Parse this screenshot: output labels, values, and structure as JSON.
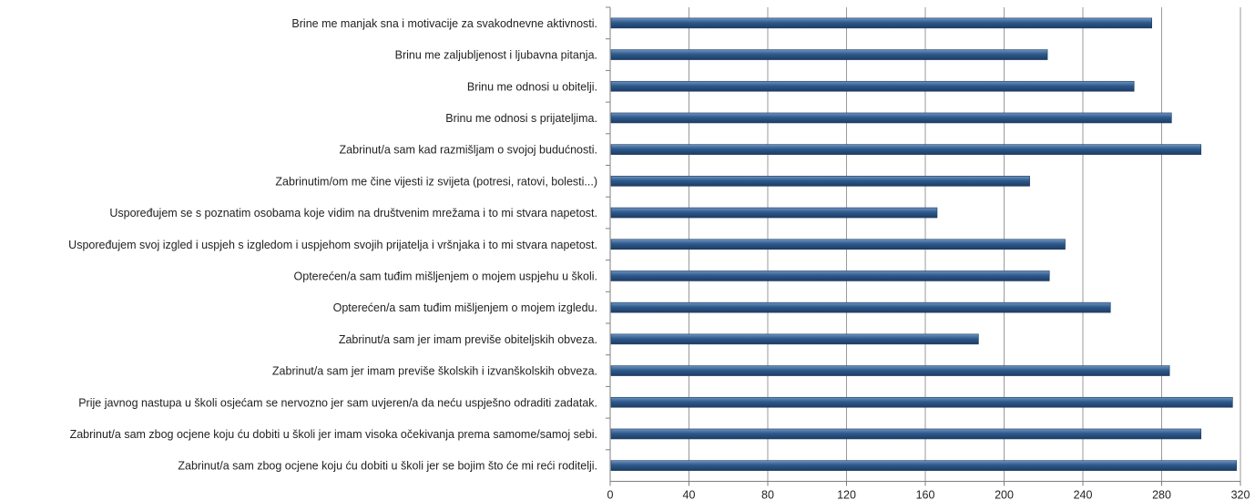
{
  "chart_data": {
    "type": "bar",
    "orientation": "horizontal",
    "title": "",
    "xlabel": "",
    "ylabel": "",
    "xlim": [
      0,
      320
    ],
    "x_ticks": [
      0,
      40,
      80,
      120,
      160,
      200,
      240,
      280,
      320
    ],
    "grid": "vertical",
    "legend": "none",
    "bar_color": "#2e5a8c",
    "categories": [
      "Brine me manjak sna i motivacije za svakodnevne aktivnosti.",
      "Brinu me zaljubljenost i ljubavna pitanja.",
      "Brinu me odnosi u obitelji.",
      "Brinu me odnosi s prijateljima.",
      "Zabrinut/a sam kad razmišljam o svojoj budućnosti.",
      "Zabrinutim/om me čine vijesti iz svijeta (potresi, ratovi, bolesti...)",
      "Uspoređujem se s poznatim osobama koje vidim na društvenim mrežama i to mi stvara napetost.",
      "Uspoređujem svoj izgled i uspjeh s izgledom i uspjehom svojih prijatelja i vršnjaka i to mi stvara napetost.",
      "Opterećen/a sam tuđim mišljenjem o mojem uspjehu u školi.",
      "Opterećen/a sam tuđim mišljenjem o mojem izgledu.",
      "Zabrinut/a sam jer imam previše obiteljskih obveza.",
      "Zabrinut/a sam jer imam previše školskih i izvanškolskih obveza.",
      "Prije javnog nastupa u školi osjećam se nervozno jer sam uvjeren/a da neću uspješno odraditi zadatak.",
      "Zabrinut/a sam zbog ocjene koju ću dobiti u školi jer imam visoka očekivanja prema samome/samoj sebi.",
      "Zabrinut/a sam zbog ocjene koju ću dobiti u školi jer se bojim što će mi reći roditelji."
    ],
    "values": [
      275,
      222,
      266,
      285,
      300,
      213,
      166,
      231,
      223,
      254,
      187,
      284,
      316,
      300,
      318
    ]
  }
}
